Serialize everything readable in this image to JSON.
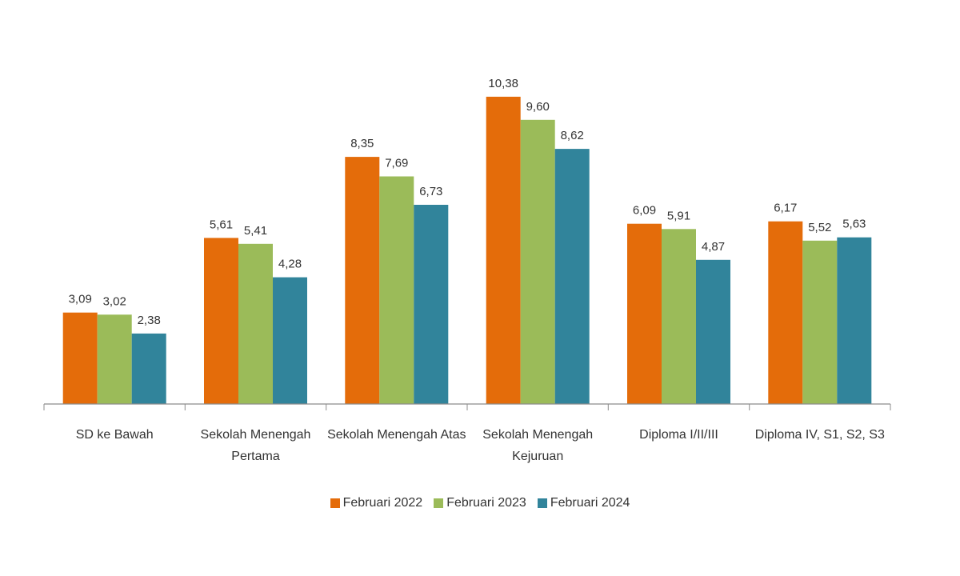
{
  "chart_data": {
    "type": "bar",
    "categories": [
      [
        "SD ke Bawah"
      ],
      [
        "Sekolah Menengah",
        "Pertama"
      ],
      [
        "Sekolah Menengah Atas"
      ],
      [
        "Sekolah Menengah",
        "Kejuruan"
      ],
      [
        "Diploma I/II/III"
      ],
      [
        "Diploma IV, S1, S2, S3"
      ]
    ],
    "series": [
      {
        "name": "Februari 2022",
        "color": "#e46c0a",
        "values": [
          3.09,
          5.61,
          8.35,
          10.38,
          6.09,
          6.17
        ],
        "labels": [
          "3,09",
          "5,61",
          "8,35",
          "10,38",
          "6,09",
          "6,17"
        ]
      },
      {
        "name": "Februari 2023",
        "color": "#9bbb59",
        "values": [
          3.02,
          5.41,
          7.69,
          9.6,
          5.91,
          5.52
        ],
        "labels": [
          "3,02",
          "5,41",
          "7,69",
          "9,60",
          "5,91",
          "5,52"
        ]
      },
      {
        "name": "Februari 2024",
        "color": "#31849b",
        "values": [
          2.38,
          4.28,
          6.73,
          8.62,
          4.87,
          5.63
        ],
        "labels": [
          "2,38",
          "4,28",
          "6,73",
          "8,62",
          "4,87",
          "5,63"
        ]
      }
    ],
    "ylim": [
      0,
      11
    ],
    "grid": false,
    "legend_position": "bottom-center"
  }
}
